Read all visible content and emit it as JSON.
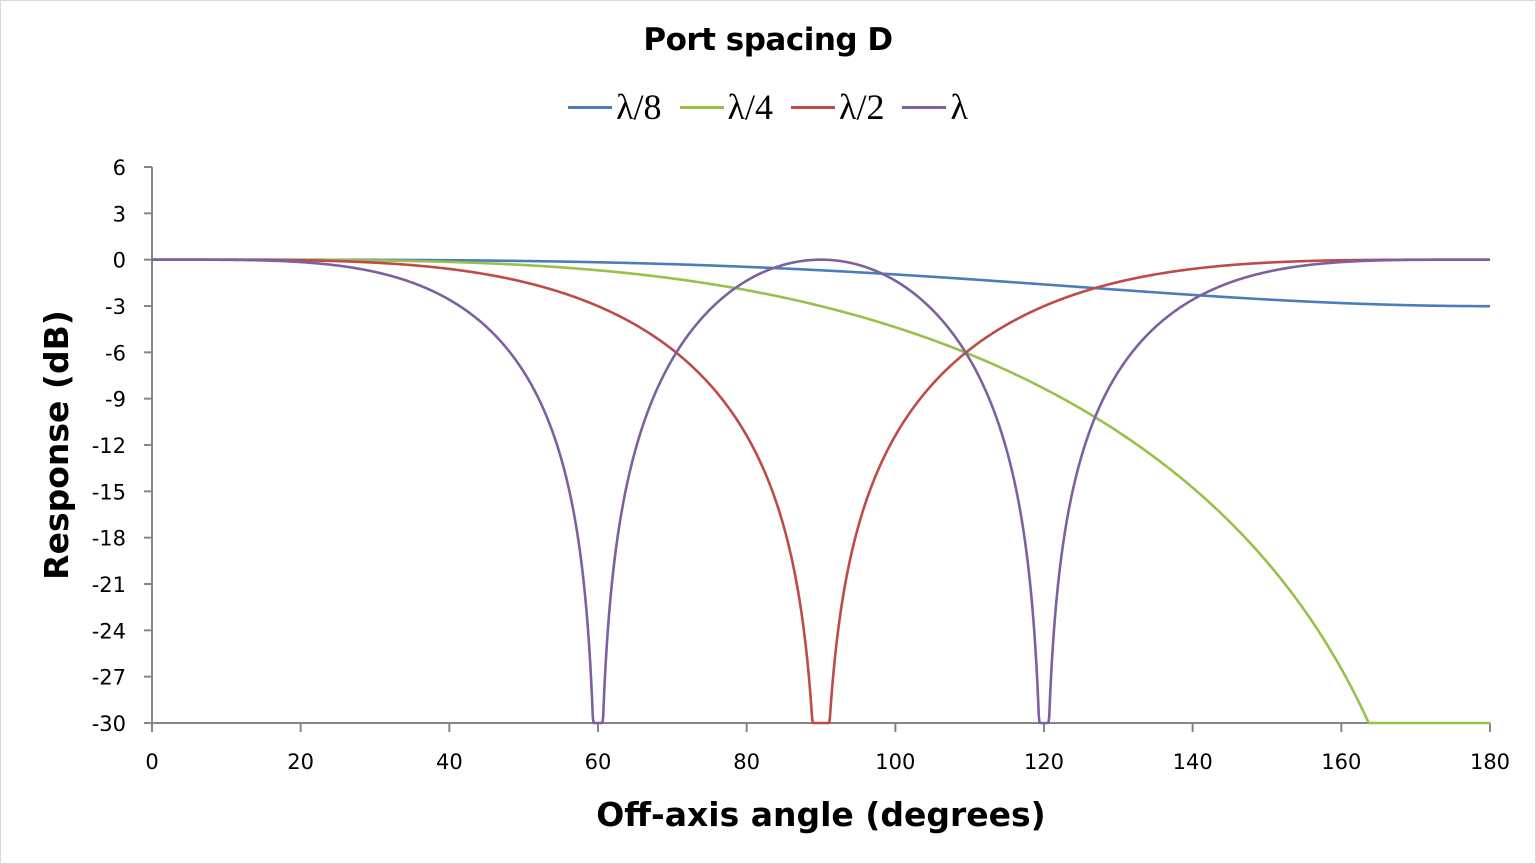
{
  "chart_data": {
    "type": "line",
    "title": "Port spacing D",
    "xlabel": "Off-axis angle (degrees)",
    "ylabel": "Response (dB)",
    "xlim": [
      0,
      180
    ],
    "ylim": [
      -30,
      6
    ],
    "x_ticks": [
      0,
      20,
      40,
      60,
      80,
      100,
      120,
      140,
      160,
      180
    ],
    "y_ticks": [
      6,
      3,
      0,
      -3,
      -6,
      -9,
      -12,
      -15,
      -18,
      -21,
      -24,
      -27,
      -30
    ],
    "grid": false,
    "legend_position": "top",
    "x": [
      0,
      10,
      20,
      30,
      40,
      50,
      60,
      70,
      80,
      90,
      100,
      110,
      120,
      130,
      140,
      150,
      160,
      170,
      180
    ],
    "series": [
      {
        "name": "λ/8",
        "color": "#4a7ebb",
        "values": [
          0,
          0,
          -0.01,
          -0.01,
          -0.06,
          -0.14,
          -0.27,
          -0.44,
          -0.63,
          -0.83,
          -1.12,
          -1.42,
          -1.71,
          -2.04,
          -2.36,
          -2.65,
          -2.86,
          -2.97,
          -3.01
        ]
      },
      {
        "name": "λ/4",
        "color": "#98c04c",
        "values": [
          0,
          0,
          -0.02,
          -0.1,
          -0.26,
          -0.57,
          -1.12,
          -1.8,
          -2.35,
          -3.01,
          -3.93,
          -5.06,
          -6.53,
          -8.27,
          -10.55,
          -13.68,
          -18.46,
          -26.6,
          -30
        ]
      },
      {
        "name": "λ/2",
        "color": "#be4b48",
        "values": [
          0,
          0,
          -0.1,
          -0.42,
          -1.15,
          -2.49,
          -3.01,
          -7.55,
          -12.7,
          -30,
          -12.27,
          -6.2,
          -3.01,
          -1.5,
          -0.6,
          -0.18,
          -0.04,
          -0.01,
          0
        ]
      },
      {
        "name": "λ",
        "color": "#7d60a0",
        "values": [
          0,
          -0.02,
          -0.39,
          -1.9,
          -5.12,
          -11.3,
          -30,
          -7.7,
          -1.86,
          0,
          -1.86,
          -7.7,
          -30,
          -7.7,
          -2.4,
          -0.7,
          -0.15,
          -0.02,
          0
        ]
      }
    ]
  },
  "legend": {
    "items": [
      {
        "label": "λ/8",
        "color": "#4a7ebb"
      },
      {
        "label": "λ/4",
        "color": "#98c04c"
      },
      {
        "label": "λ/2",
        "color": "#be4b48"
      },
      {
        "label": "λ",
        "color": "#7d60a0"
      }
    ]
  },
  "model": {
    "spacings": [
      0.125,
      0.25,
      0.5,
      1.0
    ],
    "floor_db": -30
  }
}
